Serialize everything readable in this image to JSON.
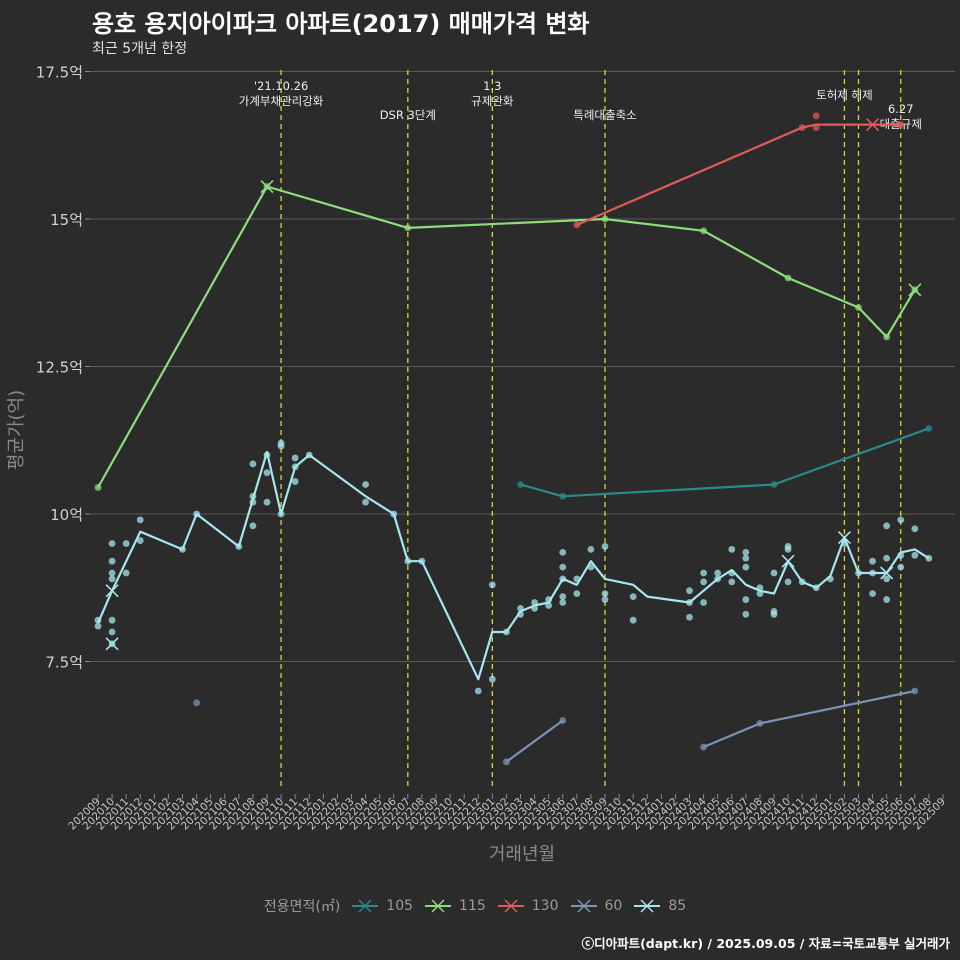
{
  "title": "용호 용지아이파크 아파트(2017) 매매가격 변화",
  "subtitle": "최근 5개년 한정",
  "caption": "ⓒ디아파트(dapt.kr) / 2025.09.05 / 자료=국토교통부 실거래가",
  "chart_data": {
    "type": "line",
    "xlabel": "거래년월",
    "ylabel": "평균가(억)",
    "ylim": [
      5.8,
      17.5
    ],
    "y_ticks": [
      {
        "value": 7.5,
        "label": "7.5억"
      },
      {
        "value": 10,
        "label": "10억"
      },
      {
        "value": 12.5,
        "label": "12.5억"
      },
      {
        "value": 15,
        "label": "15억"
      },
      {
        "value": 17.5,
        "label": "17.5억"
      }
    ],
    "categories": [
      "202009",
      "202010",
      "202011",
      "202012",
      "202101",
      "202102",
      "202103",
      "202104",
      "202105",
      "202106",
      "202107",
      "202108",
      "202109",
      "202110",
      "202111",
      "202112",
      "202201",
      "202202",
      "202203",
      "202204",
      "202205",
      "202206",
      "202207",
      "202208",
      "202209",
      "202210",
      "202211",
      "202212",
      "202301",
      "202302",
      "202303",
      "202304",
      "202305",
      "202306",
      "202307",
      "202308",
      "202309",
      "202310",
      "202311",
      "202312",
      "202401",
      "202402",
      "202403",
      "202404",
      "202405",
      "202406",
      "202407",
      "202408",
      "202409",
      "202410",
      "202411",
      "202412",
      "202501",
      "202502",
      "202503",
      "202504",
      "202505",
      "202506",
      "202507",
      "202508",
      "202509"
    ],
    "legend_title": "전용면적(㎡)",
    "legend_position": "bottom",
    "grid": true,
    "series": [
      {
        "name": "105",
        "color": "#2a8a8a",
        "line": [
          [
            "202303",
            10.5
          ],
          [
            "202306",
            10.3
          ],
          [
            "202409",
            10.5
          ],
          [
            "202508",
            11.45
          ]
        ],
        "points": [
          [
            "202303",
            10.5
          ],
          [
            "202306",
            10.3
          ],
          [
            "202409",
            10.5
          ],
          [
            "202508",
            11.45
          ]
        ],
        "cross": []
      },
      {
        "name": "115",
        "color": "#8fdc7c",
        "line": [
          [
            "202009",
            10.45
          ],
          [
            "202109",
            15.55
          ],
          [
            "202207",
            14.85
          ],
          [
            "202309",
            15.0
          ],
          [
            "202404",
            14.8
          ],
          [
            "202410",
            14.0
          ],
          [
            "202503",
            13.5
          ],
          [
            "202505",
            13.0
          ],
          [
            "202507",
            13.8
          ]
        ],
        "points": [
          [
            "202009",
            10.45
          ],
          [
            "202109",
            15.55
          ],
          [
            "202207",
            14.85
          ],
          [
            "202309",
            15.0
          ],
          [
            "202404",
            14.8
          ],
          [
            "202410",
            14.0
          ],
          [
            "202503",
            13.5
          ],
          [
            "202505",
            13.0
          ],
          [
            "202507",
            13.8
          ]
        ],
        "cross": [
          [
            "202109",
            15.55
          ],
          [
            "202507",
            13.8
          ]
        ]
      },
      {
        "name": "130",
        "color": "#e05a5a",
        "line": [
          [
            "202307",
            14.9
          ],
          [
            "202411",
            16.55
          ],
          [
            "202412",
            16.6
          ],
          [
            "202504",
            16.6
          ],
          [
            "202506",
            16.6
          ]
        ],
        "points": [
          [
            "202307",
            14.9
          ],
          [
            "202411",
            16.55
          ],
          [
            "202412",
            16.55
          ],
          [
            "202412",
            16.75
          ],
          [
            "202506",
            16.6
          ]
        ],
        "cross": [
          [
            "202504",
            16.6
          ]
        ]
      },
      {
        "name": "60",
        "color": "#7c93b8",
        "line_segments": [
          [
            [
              "202302",
              5.8
            ],
            [
              "202306",
              6.5
            ]
          ],
          [
            [
              "202404",
              6.05
            ],
            [
              "202408",
              6.45
            ],
            [
              "202507",
              7.0
            ]
          ]
        ],
        "points": [
          [
            "202104",
            6.8
          ],
          [
            "202302",
            5.8
          ],
          [
            "202306",
            6.5
          ],
          [
            "202404",
            6.05
          ],
          [
            "202408",
            6.45
          ],
          [
            "202507",
            7.0
          ]
        ],
        "cross": []
      },
      {
        "name": "85",
        "color": "#a6e6ee",
        "line": [
          [
            "202009",
            8.15
          ],
          [
            "202010",
            8.7
          ],
          [
            "202012",
            9.7
          ],
          [
            "202103",
            9.4
          ],
          [
            "202104",
            10.0
          ],
          [
            "202107",
            9.45
          ],
          [
            "202109",
            11.05
          ],
          [
            "202110",
            10.0
          ],
          [
            "202111",
            10.8
          ],
          [
            "202112",
            11.0
          ],
          [
            "202204",
            10.3
          ],
          [
            "202206",
            10.0
          ],
          [
            "202207",
            9.2
          ],
          [
            "202208",
            9.2
          ],
          [
            "202212",
            7.2
          ],
          [
            "202301",
            8.0
          ],
          [
            "202302",
            8.0
          ],
          [
            "202303",
            8.35
          ],
          [
            "202304",
            8.45
          ],
          [
            "202305",
            8.5
          ],
          [
            "202306",
            8.9
          ],
          [
            "202307",
            8.8
          ],
          [
            "202308",
            9.2
          ],
          [
            "202309",
            8.9
          ],
          [
            "202311",
            8.8
          ],
          [
            "202312",
            8.6
          ],
          [
            "202403",
            8.5
          ],
          [
            "202404",
            8.7
          ],
          [
            "202405",
            8.9
          ],
          [
            "202406",
            9.05
          ],
          [
            "202407",
            8.8
          ],
          [
            "202408",
            8.7
          ],
          [
            "202409",
            8.65
          ],
          [
            "202410",
            9.2
          ],
          [
            "202411",
            8.85
          ],
          [
            "202412",
            8.75
          ],
          [
            "202501",
            8.95
          ],
          [
            "202502",
            9.6
          ],
          [
            "202503",
            9.0
          ],
          [
            "202504",
            9.0
          ],
          [
            "202505",
            9.0
          ],
          [
            "202506",
            9.35
          ],
          [
            "202507",
            9.4
          ],
          [
            "202508",
            9.25
          ]
        ],
        "points": [
          [
            "202009",
            8.1
          ],
          [
            "202009",
            8.2
          ],
          [
            "202010",
            7.8
          ],
          [
            "202010",
            8.0
          ],
          [
            "202010",
            8.2
          ],
          [
            "202010",
            8.9
          ],
          [
            "202010",
            9.0
          ],
          [
            "202010",
            9.2
          ],
          [
            "202010",
            9.5
          ],
          [
            "202011",
            9.0
          ],
          [
            "202011",
            9.5
          ],
          [
            "202012",
            9.55
          ],
          [
            "202012",
            9.9
          ],
          [
            "202103",
            9.4
          ],
          [
            "202104",
            10.0
          ],
          [
            "202107",
            9.45
          ],
          [
            "202108",
            9.8
          ],
          [
            "202108",
            10.2
          ],
          [
            "202108",
            10.3
          ],
          [
            "202108",
            10.85
          ],
          [
            "202109",
            10.2
          ],
          [
            "202109",
            10.7
          ],
          [
            "202109",
            11.0
          ],
          [
            "202110",
            11.15
          ],
          [
            "202110",
            11.2
          ],
          [
            "202110",
            10.0
          ],
          [
            "202111",
            10.55
          ],
          [
            "202111",
            10.8
          ],
          [
            "202111",
            10.95
          ],
          [
            "202112",
            11.0
          ],
          [
            "202204",
            10.2
          ],
          [
            "202204",
            10.5
          ],
          [
            "202206",
            10.0
          ],
          [
            "202207",
            9.2
          ],
          [
            "202208",
            9.2
          ],
          [
            "202212",
            7.0
          ],
          [
            "202301",
            7.2
          ],
          [
            "202301",
            8.8
          ],
          [
            "202302",
            8.0
          ],
          [
            "202303",
            8.3
          ],
          [
            "202303",
            8.4
          ],
          [
            "202304",
            8.4
          ],
          [
            "202304",
            8.5
          ],
          [
            "202305",
            8.45
          ],
          [
            "202305",
            8.55
          ],
          [
            "202306",
            8.5
          ],
          [
            "202306",
            8.6
          ],
          [
            "202306",
            8.9
          ],
          [
            "202306",
            9.1
          ],
          [
            "202306",
            9.35
          ],
          [
            "202307",
            8.65
          ],
          [
            "202307",
            8.9
          ],
          [
            "202308",
            9.1
          ],
          [
            "202308",
            9.4
          ],
          [
            "202309",
            8.55
          ],
          [
            "202309",
            8.65
          ],
          [
            "202309",
            9.45
          ],
          [
            "202311",
            8.2
          ],
          [
            "202311",
            8.6
          ],
          [
            "202403",
            8.25
          ],
          [
            "202403",
            8.5
          ],
          [
            "202403",
            8.7
          ],
          [
            "202404",
            8.5
          ],
          [
            "202404",
            8.85
          ],
          [
            "202404",
            9.0
          ],
          [
            "202405",
            8.9
          ],
          [
            "202405",
            9.0
          ],
          [
            "202406",
            8.85
          ],
          [
            "202406",
            9.0
          ],
          [
            "202406",
            9.4
          ],
          [
            "202407",
            8.55
          ],
          [
            "202407",
            8.3
          ],
          [
            "202407",
            9.1
          ],
          [
            "202407",
            9.25
          ],
          [
            "202407",
            9.35
          ],
          [
            "202408",
            8.65
          ],
          [
            "202408",
            8.75
          ],
          [
            "202409",
            8.3
          ],
          [
            "202409",
            8.35
          ],
          [
            "202409",
            9.0
          ],
          [
            "202410",
            8.85
          ],
          [
            "202410",
            9.4
          ],
          [
            "202410",
            9.45
          ],
          [
            "202411",
            8.85
          ],
          [
            "202412",
            8.75
          ],
          [
            "202501",
            8.9
          ],
          [
            "202502",
            9.5
          ],
          [
            "202503",
            9.0
          ],
          [
            "202504",
            9.0
          ],
          [
            "202504",
            9.2
          ],
          [
            "202504",
            8.65
          ],
          [
            "202505",
            8.9
          ],
          [
            "202505",
            9.25
          ],
          [
            "202505",
            8.55
          ],
          [
            "202505",
            9.8
          ],
          [
            "202506",
            9.1
          ],
          [
            "202506",
            9.3
          ],
          [
            "202506",
            9.9
          ],
          [
            "202507",
            9.3
          ],
          [
            "202507",
            9.75
          ],
          [
            "202508",
            9.25
          ]
        ],
        "cross": [
          [
            "202010",
            7.8
          ],
          [
            "202010",
            8.7
          ],
          [
            "202410",
            9.2
          ],
          [
            "202502",
            9.6
          ],
          [
            "202505",
            9.0
          ]
        ]
      }
    ],
    "events": [
      {
        "month": "202110",
        "lines": [
          "'21.10.26",
          "가계부채관리강화"
        ],
        "row": 0
      },
      {
        "month": "202207",
        "lines": [
          "DSR 3단계"
        ],
        "row": 1
      },
      {
        "month": "202301",
        "lines": [
          "1.3",
          "규제완화"
        ],
        "row": 0
      },
      {
        "month": "202309",
        "lines": [
          "특례대출축소"
        ],
        "row": 1
      },
      {
        "month": "202502",
        "lines": [
          "토허제 해제"
        ],
        "row": 2
      },
      {
        "month": "202503",
        "lines": [],
        "row": 2
      },
      {
        "month": "202506",
        "lines": [
          "6.27",
          "대출규제"
        ],
        "row": 3
      }
    ]
  }
}
